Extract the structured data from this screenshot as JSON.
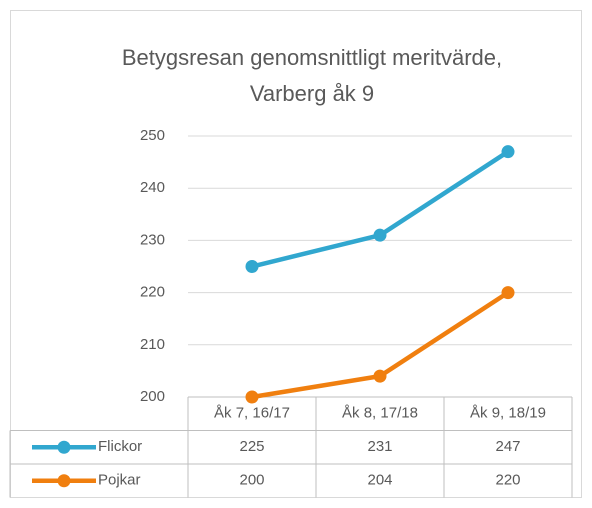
{
  "chart_data": {
    "type": "line",
    "title": [
      "Betygsresan genomsnittligt meritvärde,",
      "Varberg åk 9"
    ],
    "categories": [
      "Åk 7, 16/17",
      "Åk 8, 17/18",
      "Åk 9, 18/19"
    ],
    "series": [
      {
        "name": "Flickor",
        "color": "#31a7cf",
        "values": [
          225,
          231,
          247
        ]
      },
      {
        "name": "Pojkar",
        "color": "#f07f0f",
        "values": [
          200,
          204,
          220
        ]
      }
    ],
    "ylim": [
      200,
      250
    ],
    "yticks": [
      200,
      210,
      220,
      230,
      240,
      250
    ],
    "grid": true,
    "data_table": true
  }
}
